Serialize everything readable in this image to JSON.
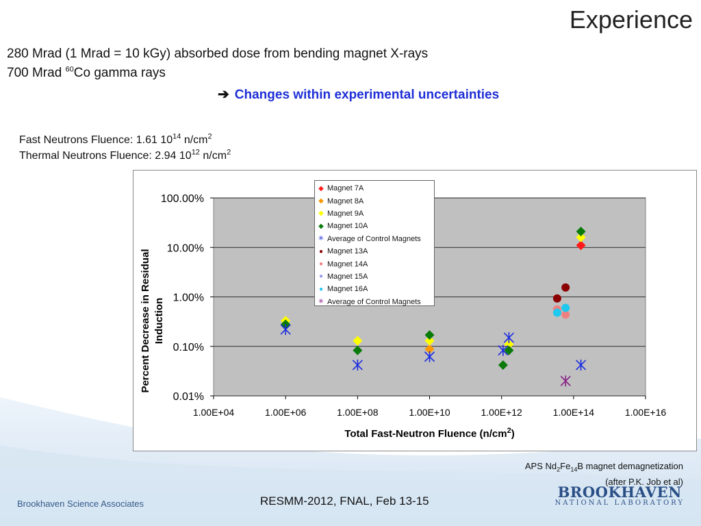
{
  "slide": {
    "title": "Experience",
    "line1": "280 Mrad (1 Mrad = 10 kGy) absorbed dose from bending magnet X-rays",
    "line2_prefix": "700 Mrad ",
    "line2_sup": "60",
    "line2_suffix": "Co gamma rays",
    "conclusion": "Changes within experimental uncertainties",
    "fast_prefix": "Fast Neutrons Fluence: 1.61 10",
    "fast_exp": "14",
    "fast_unit": " n/cm",
    "fast_unit_sup": "2",
    "thermal_prefix": "Thermal Neutrons Fluence: 2.94 10",
    "thermal_exp": "12",
    "thermal_unit": " n/cm",
    "thermal_unit_sup": "2",
    "caption_prefix": "APS Nd",
    "caption_sub1": "2",
    "caption_mid": "Fe",
    "caption_sub2": "14",
    "caption_suffix": "B magnet demagnetization",
    "caption_line2": "(after P.K. Job et al)",
    "footer_left": "Brookhaven Science Associates",
    "footer_center": "RESMM-2012, FNAL, Feb 13-15",
    "logo_big": "BROOKHAVEN",
    "logo_small": "NATIONAL LABORATORY"
  },
  "chart_data": {
    "type": "scatter",
    "xlabel": "Total Fast-Neutron Fluence (n/cm",
    "xlabel_sup": "2",
    "xlabel_end": ")",
    "ylabel_line1": "Percent Decrease in Residual",
    "ylabel_line2": "Induction",
    "x_scale": "log",
    "y_scale": "log",
    "xlim": [
      10000,
      1e+16
    ],
    "ylim": [
      0.0001,
      1
    ],
    "x_ticks": [
      "1.00E+04",
      "1.00E+06",
      "1.00E+08",
      "1.00E+10",
      "1.00E+12",
      "1.00E+14",
      "1.00E+16"
    ],
    "x_tick_values": [
      10000.0,
      1000000.0,
      100000000.0,
      10000000000.0,
      1000000000000.0,
      100000000000000.0,
      1e+16
    ],
    "y_ticks": [
      "100.00%",
      "10.00%",
      "1.00%",
      "0.10%",
      "0.01%"
    ],
    "y_tick_values": [
      1,
      0.1,
      0.01,
      0.001,
      0.0001
    ],
    "grid": true,
    "plot_background": "#c0c0c0",
    "legend_placement": "top-center",
    "series": [
      {
        "name": "Magnet 7A",
        "marker": "diamond",
        "color": "#ff1a1a",
        "points": [
          [
            160000000000000.0,
            0.11
          ]
        ]
      },
      {
        "name": "Magnet 8A",
        "marker": "diamond",
        "color": "#ff9900",
        "points": [
          [
            10000000000.0,
            0.00088
          ]
        ]
      },
      {
        "name": "Magnet 9A",
        "marker": "diamond",
        "color": "#ffff00",
        "points": [
          [
            1000000.0,
            0.0033
          ],
          [
            100000000.0,
            0.0013
          ],
          [
            10000000000.0,
            0.0013
          ],
          [
            1600000000000.0,
            0.0011
          ],
          [
            160000000000000.0,
            0.16
          ]
        ]
      },
      {
        "name": "Magnet 10A",
        "marker": "diamond",
        "color": "#0a7a0a",
        "points": [
          [
            1000000.0,
            0.0028
          ],
          [
            100000000.0,
            0.00083
          ],
          [
            10000000000.0,
            0.0017
          ],
          [
            1100000000000.0,
            0.00042
          ],
          [
            1600000000000.0,
            0.00083
          ],
          [
            160000000000000.0,
            0.21
          ]
        ]
      },
      {
        "name": "Average of Control Magnets",
        "marker": "asterisk",
        "color": "#1a2be0",
        "points": [
          [
            1000000.0,
            0.0022
          ],
          [
            100000000.0,
            0.00042
          ],
          [
            10000000000.0,
            0.00062
          ],
          [
            1100000000000.0,
            0.00083
          ],
          [
            1600000000000.0,
            0.0015
          ],
          [
            160000000000000.0,
            0.00042
          ]
        ]
      },
      {
        "name": "Magnet 13A",
        "marker": "circle",
        "color": "#8b0000",
        "points": [
          [
            35000000000000.0,
            0.0093
          ],
          [
            60000000000000.0,
            0.0155
          ]
        ]
      },
      {
        "name": "Magnet 14A",
        "marker": "circle",
        "color": "#f08080",
        "points": [
          [
            35000000000000.0,
            0.0056
          ],
          [
            60000000000000.0,
            0.0044
          ]
        ]
      },
      {
        "name": "Magnet 15A",
        "marker": "circle",
        "color": "#9999ee",
        "points": []
      },
      {
        "name": "Magnet 16A",
        "marker": "circle",
        "color": "#1ec8ee",
        "points": [
          [
            35000000000000.0,
            0.0048
          ],
          [
            60000000000000.0,
            0.006
          ]
        ]
      },
      {
        "name": "Average of Control Magnets",
        "marker": "asterisk",
        "color": "#882288",
        "points": [
          [
            60000000000000.0,
            0.0002
          ]
        ]
      }
    ]
  }
}
